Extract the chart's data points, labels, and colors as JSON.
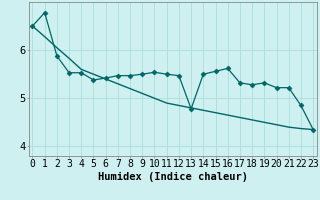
{
  "title": "",
  "xlabel": "Humidex (Indice chaleur)",
  "ylabel": "",
  "background_color": "#cff0f0",
  "grid_color": "#aadddd",
  "line_color": "#006666",
  "x": [
    0,
    1,
    2,
    3,
    4,
    5,
    6,
    7,
    8,
    9,
    10,
    11,
    12,
    13,
    14,
    15,
    16,
    17,
    18,
    19,
    20,
    21,
    22,
    23
  ],
  "y_data": [
    6.5,
    6.78,
    5.88,
    5.53,
    5.53,
    5.38,
    5.42,
    5.47,
    5.47,
    5.5,
    5.54,
    5.5,
    5.47,
    4.78,
    5.5,
    5.56,
    5.62,
    5.32,
    5.28,
    5.32,
    5.22,
    5.22,
    4.85,
    4.35
  ],
  "y_trend": [
    6.5,
    6.28,
    6.05,
    5.83,
    5.6,
    5.5,
    5.4,
    5.3,
    5.2,
    5.1,
    5.0,
    4.9,
    4.85,
    4.8,
    4.75,
    4.7,
    4.65,
    4.6,
    4.55,
    4.5,
    4.45,
    4.4,
    4.37,
    4.35
  ],
  "ylim": [
    3.8,
    7.0
  ],
  "xlim": [
    -0.3,
    23.3
  ],
  "yticks": [
    4,
    5,
    6
  ],
  "xticks": [
    0,
    1,
    2,
    3,
    4,
    5,
    6,
    7,
    8,
    9,
    10,
    11,
    12,
    13,
    14,
    15,
    16,
    17,
    18,
    19,
    20,
    21,
    22,
    23
  ],
  "xlabel_fontsize": 7.5,
  "tick_fontsize": 7,
  "markersize": 2.5
}
